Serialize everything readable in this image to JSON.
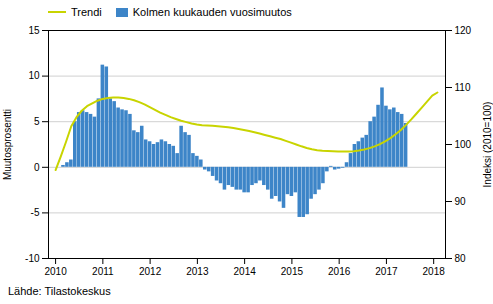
{
  "chart_data": {
    "type": "bar",
    "ylabel": "Muutosprosentti",
    "y2label": "Indeksi (2010=100)",
    "source": "Lähde: Tilastokeskus",
    "xlim": [
      2009.85,
      2018.25
    ],
    "xticks": [
      2010,
      2011,
      2012,
      2013,
      2014,
      2015,
      2016,
      2017,
      2018
    ],
    "ylim": [
      -10,
      15
    ],
    "yticks": [
      -10,
      -5,
      0,
      5,
      10,
      15
    ],
    "y2lim": [
      80,
      120
    ],
    "y2ticks": [
      80,
      90,
      100,
      110,
      120
    ],
    "grid": true,
    "legend": "upper left",
    "series": [
      {
        "name": "Trendi",
        "type": "line",
        "color": "#c8d400",
        "x": [
          2010,
          2010.110685,
          2010.22137,
          2010.332055,
          2010.44274,
          2010.553425,
          2010.66411,
          2010.774795,
          2010.885479,
          2010.996164,
          2011.106849,
          2011.217534,
          2011.328219,
          2011.438904,
          2011.549589,
          2011.660274,
          2011.770959,
          2011.881644,
          2011.992329,
          2012.103014,
          2012.213699,
          2012.324384,
          2012.435068,
          2012.545753,
          2012.656438,
          2012.767123,
          2012.877808,
          2012.988493,
          2013.099178,
          2013.209863,
          2013.320548,
          2013.431233,
          2013.541918,
          2013.652603,
          2013.763288,
          2013.873973,
          2013.984658,
          2014.095342,
          2014.206027,
          2014.316712,
          2014.427397,
          2014.538082,
          2014.648767,
          2014.759452,
          2014.870137,
          2014.980822,
          2015.091507,
          2015.202192,
          2015.312877,
          2015.423562,
          2015.534247,
          2015.644932,
          2015.755616,
          2015.866301,
          2015.976986,
          2016.087671,
          2016.198356,
          2016.309041,
          2016.419726,
          2016.530411,
          2016.641096,
          2016.751781,
          2016.862466,
          2016.973151,
          2017.083836,
          2017.194521,
          2017.305205,
          2017.41589,
          2017.526575,
          2017.63726,
          2017.747945,
          2017.85863,
          2017.969315,
          2018.08
        ],
        "values": [
          -0.3,
          1.2,
          2.8,
          4.5,
          5.5,
          6.2,
          6.7,
          7.0,
          7.3,
          7.5,
          7.6,
          7.65,
          7.65,
          7.6,
          7.5,
          7.35,
          7.15,
          6.9,
          6.6,
          6.3,
          6.0,
          5.75,
          5.5,
          5.3,
          5.1,
          4.95,
          4.8,
          4.7,
          4.62,
          4.58,
          4.55,
          4.5,
          4.45,
          4.38,
          4.3,
          4.2,
          4.1,
          3.98,
          3.85,
          3.7,
          3.55,
          3.4,
          3.25,
          3.1,
          2.9,
          2.7,
          2.5,
          2.3,
          2.12,
          1.98,
          1.88,
          1.82,
          1.78,
          1.75,
          1.73,
          1.72,
          1.73,
          1.77,
          1.85,
          1.95,
          2.1,
          2.3,
          2.55,
          2.85,
          3.2,
          3.62,
          4.1,
          4.65,
          5.25,
          5.9,
          6.55,
          7.2,
          7.85,
          8.2
        ]
      },
      {
        "name": "Kolmen kuukauden vuosimuutos",
        "type": "bar",
        "color": "#3d85c8",
        "x": [
          2010.1666666666667,
          2010.25,
          2010.3333333333333,
          2010.4166666666667,
          2010.5,
          2010.5833333333333,
          2010.6666666666667,
          2010.75,
          2010.8333333333333,
          2010.9166666666667,
          2011,
          2011.0833333333333,
          2011.1666666666667,
          2011.25,
          2011.3333333333333,
          2011.4166666666667,
          2011.5,
          2011.5833333333333,
          2011.6666666666667,
          2011.75,
          2011.8333333333333,
          2011.9166666666667,
          2012,
          2012.0833333333333,
          2012.1666666666667,
          2012.25,
          2012.3333333333333,
          2012.4166666666667,
          2012.5,
          2012.5833333333333,
          2012.6666666666667,
          2012.75,
          2012.8333333333333,
          2012.9166666666667,
          2013,
          2013.0833333333333,
          2013.1666666666667,
          2013.25,
          2013.3333333333333,
          2013.4166666666667,
          2013.5,
          2013.5833333333333,
          2013.6666666666667,
          2013.75,
          2013.8333333333333,
          2013.9166666666667,
          2014,
          2014.0833333333333,
          2014.1666666666667,
          2014.25,
          2014.3333333333333,
          2014.4166666666667,
          2014.5,
          2014.5833333333333,
          2014.6666666666667,
          2014.75,
          2014.8333333333333,
          2014.9166666666667,
          2015,
          2015.0833333333333,
          2015.1666666666667,
          2015.25,
          2015.3333333333333,
          2015.4166666666667,
          2015.5,
          2015.5833333333333,
          2015.6666666666667,
          2015.75,
          2015.8333333333333,
          2015.9166666666667,
          2016,
          2016.0833333333333,
          2016.1666666666667,
          2016.25,
          2016.3333333333333,
          2016.4166666666667,
          2016.5,
          2016.5833333333333,
          2016.6666666666667,
          2016.75,
          2016.8333333333333,
          2016.9166666666667,
          2017,
          2017.0833333333333,
          2017.1666666666667,
          2017.25,
          2017.3333333333333,
          2017.4166666666667
        ],
        "values": [
          0.2,
          0.5,
          0.8,
          5.0,
          6.0,
          6.2,
          6.0,
          5.8,
          5.5,
          7.5,
          11.2,
          11.0,
          7.5,
          7.2,
          6.5,
          6.3,
          6.2,
          5.8,
          4.0,
          3.8,
          4.5,
          3.0,
          2.8,
          2.5,
          2.7,
          3.0,
          2.8,
          2.5,
          2.3,
          1.5,
          4.5,
          3.8,
          3.5,
          1.5,
          1.2,
          0.8,
          -0.3,
          -0.5,
          -1.0,
          -1.5,
          -1.8,
          -2.5,
          -2.0,
          -2.2,
          -2.5,
          -2.5,
          -2.8,
          -2.8,
          -2.0,
          -1.8,
          -1.5,
          -2.0,
          -2.5,
          -3.5,
          -3.2,
          -3.8,
          -4.5,
          -3.0,
          -3.2,
          -2.8,
          -5.5,
          -5.5,
          -5.2,
          -3.5,
          -3.0,
          -2.5,
          -1.8,
          -0.5,
          0.1,
          -0.3,
          -0.2,
          -0.1,
          0.5,
          1.5,
          2.5,
          2.8,
          3.2,
          3.5,
          5.0,
          5.5,
          6.8,
          8.7,
          6.7,
          6.3,
          6.5,
          6.0,
          5.8,
          4.8
        ]
      }
    ]
  }
}
